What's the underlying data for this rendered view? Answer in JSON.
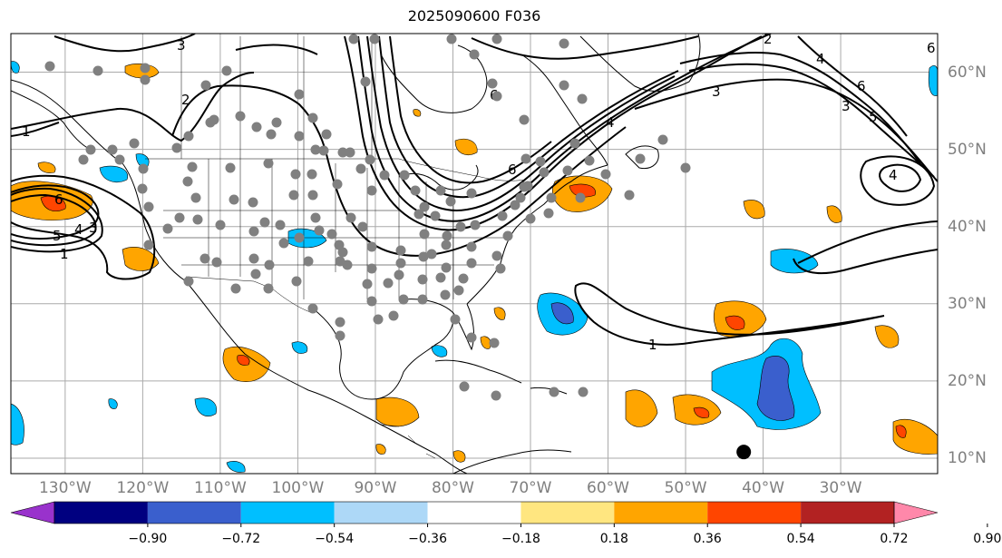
{
  "title": "2025090600 F036",
  "map": {
    "projection": "plate-carree",
    "extent_lon": [
      -137,
      -17.5
    ],
    "extent_lat": [
      8,
      65
    ],
    "lon_ticks": [
      {
        "value": -130,
        "label": "130°W"
      },
      {
        "value": -120,
        "label": "120°W"
      },
      {
        "value": -110,
        "label": "110°W"
      },
      {
        "value": -100,
        "label": "100°W"
      },
      {
        "value": -90,
        "label": "90°W"
      },
      {
        "value": -80,
        "label": "80°W"
      },
      {
        "value": -70,
        "label": "70°W"
      },
      {
        "value": -60,
        "label": "60°W"
      },
      {
        "value": -50,
        "label": "50°W"
      },
      {
        "value": -40,
        "label": "40°W"
      },
      {
        "value": -30,
        "label": "30°W"
      }
    ],
    "lat_ticks": [
      {
        "value": 60,
        "label": "60°N"
      },
      {
        "value": 50,
        "label": "50°N"
      },
      {
        "value": 40,
        "label": "40°N"
      },
      {
        "value": 30,
        "label": "30°N"
      },
      {
        "value": 20,
        "label": "20°N"
      },
      {
        "value": 10,
        "label": "10°N"
      }
    ],
    "gridlines": true,
    "marker": {
      "lon": -42.5,
      "lat": 10.8,
      "color": "#000000"
    }
  },
  "contour_labels": [
    "1",
    "2",
    "3",
    "4",
    "5",
    "6"
  ],
  "colorbar": {
    "ticks": [
      "−0.90",
      "−0.72",
      "−0.54",
      "−0.36",
      "−0.18",
      "0.18",
      "0.36",
      "0.54",
      "0.72",
      "0.90"
    ],
    "colors": [
      "#9932cc",
      "#000080",
      "#3a5fcd",
      "#00bfff",
      "#add8f7",
      "#ffffff",
      "#ffe680",
      "#ffa500",
      "#ff4500",
      "#b22222",
      "#ff88aa"
    ],
    "extend": "both"
  },
  "colors": {
    "station": "#808080",
    "contour": "#000000",
    "grid": "#aaaaaa",
    "tick_label": "#7f7f7f"
  }
}
